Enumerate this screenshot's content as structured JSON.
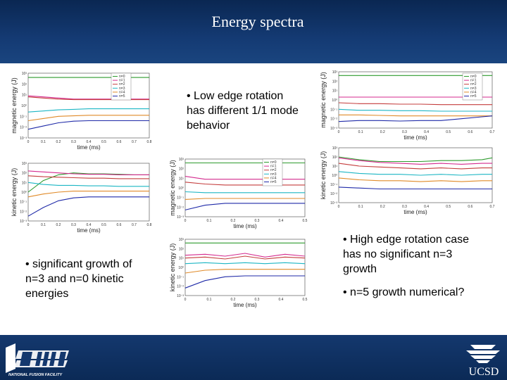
{
  "slide": {
    "title": "Energy spectra"
  },
  "bullets": {
    "low_rotation": "• Low edge rotation has different 1/1 mode behavior",
    "kinetic_growth": "• significant growth of n=3 and n=0 kinetic energies",
    "high_rotation": "• High edge rotation case has no significant n=3 growth",
    "numerical": "• n=5 growth numerical?"
  },
  "logos": {
    "left": "DIII-D",
    "left_sub": "NATIONAL FUSION FACILITY",
    "right": "UCSD"
  },
  "colors": {
    "header": "#0a2752",
    "n0": "#2e9b2e",
    "n1": "#d42a8e",
    "n2": "#c43c3c",
    "n3": "#1cb6c4",
    "n4": "#e08a28",
    "n5": "#1f2aa8"
  },
  "legend_labels": [
    "n=0",
    "n=1",
    "n=2",
    "n=3",
    "n=4",
    "n=5"
  ],
  "chart_data": [
    {
      "id": "low-rotation-magnetic",
      "type": "line",
      "ylabel": "magnetic energy (J)",
      "xlabel": "time (ms)",
      "x_ticks": [
        "0",
        "0.1",
        "0.2",
        "0.3",
        "0.4",
        "0.5",
        "0.6",
        "0.7",
        "0.8"
      ],
      "y_ticks": [
        "10⁻³",
        "10⁻²",
        "10⁻¹",
        "10⁰",
        "10¹",
        "10²",
        "10³"
      ],
      "ylim": [
        -3,
        3
      ],
      "y_scale": "log",
      "x": [
        0,
        0.1,
        0.2,
        0.3,
        0.4,
        0.5,
        0.6,
        0.7,
        0.8
      ],
      "series": [
        {
          "name": "n=0",
          "values": [
            2.6,
            2.6,
            2.6,
            2.6,
            2.6,
            2.6,
            2.6,
            2.6,
            2.6
          ]
        },
        {
          "name": "n=1",
          "values": [
            0.9,
            0.8,
            0.7,
            0.6,
            0.6,
            0.6,
            0.6,
            0.6,
            0.6
          ]
        },
        {
          "name": "n=2",
          "values": [
            0.8,
            0.7,
            0.6,
            0.55,
            0.55,
            0.55,
            0.55,
            0.55,
            0.55
          ]
        },
        {
          "name": "n=3",
          "values": [
            -0.6,
            -0.5,
            -0.4,
            -0.35,
            -0.3,
            -0.3,
            -0.3,
            -0.3,
            -0.3
          ]
        },
        {
          "name": "n=4",
          "values": [
            -1.4,
            -1.2,
            -1.0,
            -0.95,
            -0.9,
            -0.9,
            -0.9,
            -0.9,
            -0.9
          ]
        },
        {
          "name": "n=5",
          "values": [
            -2.2,
            -1.9,
            -1.6,
            -1.45,
            -1.4,
            -1.4,
            -1.4,
            -1.4,
            -1.4
          ]
        }
      ]
    },
    {
      "id": "low-rotation-kinetic",
      "type": "line",
      "ylabel": "kinetic energy (J)",
      "xlabel": "time (ms)",
      "x_ticks": [
        "0",
        "0.1",
        "0.2",
        "0.3",
        "0.4",
        "0.5",
        "0.6",
        "0.7",
        "0.8"
      ],
      "y_ticks": [
        "10⁻³",
        "10⁻²",
        "10⁻¹",
        "10⁰",
        "10¹",
        "10²",
        "10³"
      ],
      "ylim": [
        -3,
        3
      ],
      "y_scale": "log",
      "x": [
        0,
        0.1,
        0.2,
        0.3,
        0.4,
        0.5,
        0.6,
        0.7,
        0.8
      ],
      "series": [
        {
          "name": "n=0",
          "values": [
            0.0,
            1.2,
            1.8,
            2.0,
            1.9,
            1.9,
            1.85,
            1.8,
            1.8
          ]
        },
        {
          "name": "n=1",
          "values": [
            2.2,
            2.1,
            2.0,
            1.9,
            1.85,
            1.85,
            1.8,
            1.8,
            1.8
          ]
        },
        {
          "name": "n=2",
          "values": [
            1.7,
            1.6,
            1.55,
            1.5,
            1.45,
            1.45,
            1.4,
            1.4,
            1.4
          ]
        },
        {
          "name": "n=3",
          "values": [
            1.0,
            0.8,
            0.7,
            0.7,
            0.65,
            0.65,
            0.6,
            0.6,
            0.6
          ]
        },
        {
          "name": "n=4",
          "values": [
            -0.5,
            -0.2,
            0.0,
            0.1,
            0.1,
            0.1,
            0.1,
            0.1,
            0.1
          ]
        },
        {
          "name": "n=5",
          "values": [
            -2.5,
            -1.6,
            -0.9,
            -0.6,
            -0.5,
            -0.5,
            -0.5,
            -0.5,
            -0.5
          ]
        }
      ]
    },
    {
      "id": "mid-magnetic",
      "type": "line",
      "ylabel": "magnetic energy (J)",
      "xlabel": "time (ms)",
      "x_ticks": [
        "0",
        "0.1",
        "0.2",
        "0.3",
        "0.4",
        "0.5"
      ],
      "y_ticks": [
        "10⁻³",
        "10⁻²",
        "10⁻¹",
        "10⁰",
        "10¹",
        "10²",
        "10³"
      ],
      "ylim": [
        -3,
        3
      ],
      "y_scale": "log",
      "x": [
        0,
        0.1,
        0.2,
        0.3,
        0.4,
        0.5,
        0.6
      ],
      "series": [
        {
          "name": "n=0",
          "values": [
            2.6,
            2.6,
            2.6,
            2.6,
            2.6,
            2.6,
            2.6
          ]
        },
        {
          "name": "n=1",
          "values": [
            1.2,
            0.9,
            0.9,
            0.9,
            0.9,
            0.9,
            0.9
          ]
        },
        {
          "name": "n=2",
          "values": [
            0.6,
            0.4,
            0.3,
            0.3,
            0.3,
            0.3,
            0.3
          ]
        },
        {
          "name": "n=3",
          "values": [
            -0.4,
            -0.5,
            -0.5,
            -0.5,
            -0.5,
            -0.5,
            -0.5
          ]
        },
        {
          "name": "n=4",
          "values": [
            -1.2,
            -1.1,
            -1.1,
            -1.1,
            -1.1,
            -1.1,
            -1.1
          ]
        },
        {
          "name": "n=5",
          "values": [
            -2.3,
            -1.8,
            -1.6,
            -1.6,
            -1.6,
            -1.6,
            -1.6
          ]
        }
      ]
    },
    {
      "id": "mid-kinetic",
      "type": "line",
      "ylabel": "kinetic energy (J)",
      "xlabel": "time (ms)",
      "x_ticks": [
        "0",
        "0.1",
        "0.2",
        "0.3",
        "0.4",
        "0.5"
      ],
      "y_ticks": [
        "10⁻³",
        "10⁻²",
        "10⁻¹",
        "10⁰",
        "10¹",
        "10²",
        "10³"
      ],
      "ylim": [
        -3,
        3
      ],
      "y_scale": "log",
      "x": [
        0,
        0.1,
        0.2,
        0.3,
        0.4,
        0.5,
        0.6
      ],
      "series": [
        {
          "name": "n=0",
          "values": [
            2.6,
            2.6,
            2.6,
            2.6,
            2.6,
            2.6,
            2.6
          ]
        },
        {
          "name": "n=1",
          "values": [
            1.3,
            1.4,
            1.2,
            1.5,
            1.1,
            1.4,
            1.2
          ]
        },
        {
          "name": "n=2",
          "values": [
            1.0,
            1.1,
            0.9,
            1.2,
            0.9,
            1.1,
            1.0
          ]
        },
        {
          "name": "n=3",
          "values": [
            0.4,
            0.5,
            0.4,
            0.5,
            0.4,
            0.5,
            0.4
          ]
        },
        {
          "name": "n=4",
          "values": [
            -0.6,
            -0.3,
            -0.2,
            -0.2,
            -0.2,
            -0.2,
            -0.2
          ]
        },
        {
          "name": "n=5",
          "values": [
            -2.2,
            -1.4,
            -1.0,
            -0.9,
            -0.9,
            -0.9,
            -0.9
          ]
        }
      ]
    },
    {
      "id": "high-rotation-magnetic",
      "type": "line",
      "ylabel": "magnetic energy (J)",
      "xlabel": "time (ms)",
      "x_ticks": [
        "0",
        "0.1",
        "0.2",
        "0.3",
        "0.4",
        "0.5",
        "0.6",
        "0.7"
      ],
      "y_ticks": [
        "10⁻³",
        "10⁻²",
        "10⁻¹",
        "10⁰",
        "10¹",
        "10²",
        "10³"
      ],
      "ylim": [
        -3,
        3
      ],
      "y_scale": "log",
      "x": [
        0,
        0.1,
        0.2,
        0.3,
        0.4,
        0.5,
        0.6,
        0.7,
        0.75
      ],
      "series": [
        {
          "name": "n=0",
          "values": [
            2.6,
            2.6,
            2.6,
            2.6,
            2.6,
            2.6,
            2.6,
            2.6,
            2.6
          ]
        },
        {
          "name": "n=1",
          "values": [
            0.3,
            0.3,
            0.3,
            0.3,
            0.3,
            0.3,
            0.3,
            0.3,
            0.3
          ]
        },
        {
          "name": "n=2",
          "values": [
            -0.3,
            -0.4,
            -0.4,
            -0.45,
            -0.45,
            -0.5,
            -0.5,
            -0.5,
            -0.5
          ]
        },
        {
          "name": "n=3",
          "values": [
            -1.0,
            -1.1,
            -1.1,
            -1.15,
            -1.15,
            -1.2,
            -1.2,
            -1.2,
            -1.2
          ]
        },
        {
          "name": "n=4",
          "values": [
            -1.6,
            -1.6,
            -1.65,
            -1.7,
            -1.7,
            -1.7,
            -1.7,
            -1.7,
            -1.7
          ]
        },
        {
          "name": "n=5",
          "values": [
            -2.3,
            -2.2,
            -2.2,
            -2.25,
            -2.2,
            -2.2,
            -2.0,
            -1.8,
            -1.7
          ]
        }
      ]
    },
    {
      "id": "high-rotation-kinetic",
      "type": "line",
      "ylabel": "kinetic energy (J)",
      "xlabel": "time (ms)",
      "x_ticks": [
        "0",
        "0.1",
        "0.2",
        "0.3",
        "0.4",
        "0.5",
        "0.6",
        "0.7"
      ],
      "y_ticks": [
        "10⁻³",
        "10⁻²",
        "10⁻¹",
        "10⁰",
        "10¹",
        "10²",
        "10³"
      ],
      "ylim": [
        -3,
        3
      ],
      "y_scale": "log",
      "x": [
        0,
        0.1,
        0.2,
        0.3,
        0.4,
        0.5,
        0.6,
        0.7,
        0.75
      ],
      "series": [
        {
          "name": "n=0",
          "values": [
            2.0,
            1.7,
            1.5,
            1.5,
            1.5,
            1.6,
            1.6,
            1.7,
            1.9
          ]
        },
        {
          "name": "n=1",
          "values": [
            1.9,
            1.6,
            1.4,
            1.3,
            1.2,
            1.3,
            1.2,
            1.3,
            1.3
          ]
        },
        {
          "name": "n=2",
          "values": [
            1.3,
            1.0,
            0.9,
            0.8,
            0.7,
            0.8,
            0.7,
            0.8,
            0.8
          ]
        },
        {
          "name": "n=3",
          "values": [
            0.4,
            0.2,
            0.1,
            0.1,
            0.0,
            0.1,
            0.0,
            0.1,
            0.1
          ]
        },
        {
          "name": "n=4",
          "values": [
            -0.3,
            -0.5,
            -0.6,
            -0.6,
            -0.7,
            -0.6,
            -0.7,
            -0.6,
            -0.6
          ]
        },
        {
          "name": "n=5",
          "values": [
            -1.3,
            -1.4,
            -1.5,
            -1.5,
            -1.5,
            -1.5,
            -1.5,
            -1.5,
            -1.5
          ]
        }
      ]
    }
  ]
}
